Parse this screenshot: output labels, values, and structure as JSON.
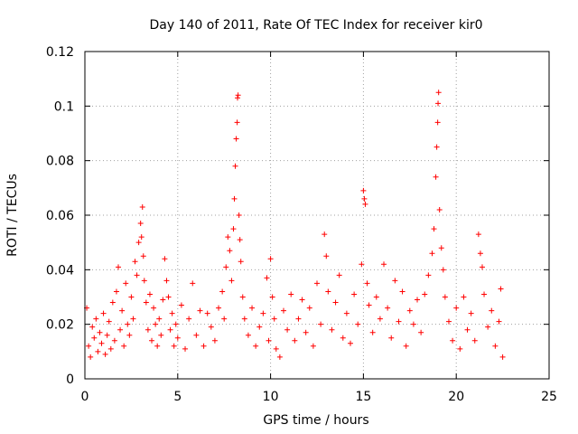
{
  "chart_data": {
    "type": "scatter",
    "title": "Day 140 of 2011, Rate Of TEC Index for receiver kir0",
    "xlabel": "GPS time / hours",
    "ylabel": "ROTI / TECUs",
    "xlim": [
      0,
      25
    ],
    "ylim": [
      0,
      0.12
    ],
    "xticks": [
      0,
      5,
      10,
      15,
      20,
      25
    ],
    "xtick_labels": [
      "0",
      "5",
      "10",
      "15",
      "20",
      "25"
    ],
    "yticks": [
      0,
      0.02,
      0.04,
      0.06,
      0.08,
      0.1,
      0.12
    ],
    "ytick_labels": [
      "0",
      "0.02",
      "0.04",
      "0.06",
      "0.08",
      "0.1",
      "0.12"
    ],
    "grid": true,
    "marker": "+",
    "series_color": "#ff0000",
    "series": [
      {
        "name": "ROTI",
        "points": [
          [
            0.1,
            0.026
          ],
          [
            0.2,
            0.012
          ],
          [
            0.3,
            0.008
          ],
          [
            0.4,
            0.019
          ],
          [
            0.5,
            0.015
          ],
          [
            0.6,
            0.022
          ],
          [
            0.7,
            0.01
          ],
          [
            0.8,
            0.017
          ],
          [
            0.9,
            0.013
          ],
          [
            1.0,
            0.024
          ],
          [
            1.1,
            0.009
          ],
          [
            1.2,
            0.016
          ],
          [
            1.3,
            0.021
          ],
          [
            1.4,
            0.011
          ],
          [
            1.5,
            0.028
          ],
          [
            1.6,
            0.014
          ],
          [
            1.7,
            0.032
          ],
          [
            1.8,
            0.041
          ],
          [
            1.9,
            0.018
          ],
          [
            2.0,
            0.025
          ],
          [
            2.1,
            0.012
          ],
          [
            2.2,
            0.035
          ],
          [
            2.3,
            0.02
          ],
          [
            2.4,
            0.016
          ],
          [
            2.5,
            0.03
          ],
          [
            2.6,
            0.022
          ],
          [
            2.7,
            0.043
          ],
          [
            2.8,
            0.038
          ],
          [
            2.9,
            0.05
          ],
          [
            3.0,
            0.057
          ],
          [
            3.05,
            0.052
          ],
          [
            3.1,
            0.063
          ],
          [
            3.15,
            0.045
          ],
          [
            3.2,
            0.036
          ],
          [
            3.3,
            0.028
          ],
          [
            3.4,
            0.018
          ],
          [
            3.5,
            0.031
          ],
          [
            3.6,
            0.014
          ],
          [
            3.7,
            0.026
          ],
          [
            3.8,
            0.02
          ],
          [
            3.9,
            0.012
          ],
          [
            4.0,
            0.022
          ],
          [
            4.1,
            0.016
          ],
          [
            4.2,
            0.029
          ],
          [
            4.3,
            0.044
          ],
          [
            4.4,
            0.036
          ],
          [
            4.5,
            0.03
          ],
          [
            4.6,
            0.018
          ],
          [
            4.7,
            0.024
          ],
          [
            4.8,
            0.012
          ],
          [
            4.9,
            0.02
          ],
          [
            5.0,
            0.015
          ],
          [
            5.2,
            0.027
          ],
          [
            5.4,
            0.011
          ],
          [
            5.6,
            0.022
          ],
          [
            5.8,
            0.035
          ],
          [
            6.0,
            0.016
          ],
          [
            6.2,
            0.025
          ],
          [
            6.4,
            0.012
          ],
          [
            6.6,
            0.024
          ],
          [
            6.8,
            0.019
          ],
          [
            7.0,
            0.014
          ],
          [
            7.2,
            0.026
          ],
          [
            7.4,
            0.032
          ],
          [
            7.5,
            0.022
          ],
          [
            7.6,
            0.041
          ],
          [
            7.7,
            0.052
          ],
          [
            7.8,
            0.047
          ],
          [
            7.9,
            0.036
          ],
          [
            8.0,
            0.055
          ],
          [
            8.05,
            0.066
          ],
          [
            8.1,
            0.078
          ],
          [
            8.15,
            0.088
          ],
          [
            8.2,
            0.094
          ],
          [
            8.22,
            0.103
          ],
          [
            8.25,
            0.104
          ],
          [
            8.3,
            0.06
          ],
          [
            8.35,
            0.051
          ],
          [
            8.4,
            0.043
          ],
          [
            8.5,
            0.03
          ],
          [
            8.6,
            0.022
          ],
          [
            8.8,
            0.016
          ],
          [
            9.0,
            0.026
          ],
          [
            9.2,
            0.012
          ],
          [
            9.4,
            0.019
          ],
          [
            9.6,
            0.024
          ],
          [
            9.8,
            0.037
          ],
          [
            9.9,
            0.014
          ],
          [
            10.0,
            0.044
          ],
          [
            10.1,
            0.03
          ],
          [
            10.2,
            0.022
          ],
          [
            10.3,
            0.011
          ],
          [
            10.5,
            0.008
          ],
          [
            10.7,
            0.025
          ],
          [
            10.9,
            0.018
          ],
          [
            11.1,
            0.031
          ],
          [
            11.3,
            0.014
          ],
          [
            11.5,
            0.022
          ],
          [
            11.7,
            0.029
          ],
          [
            11.9,
            0.017
          ],
          [
            12.1,
            0.026
          ],
          [
            12.3,
            0.012
          ],
          [
            12.5,
            0.035
          ],
          [
            12.7,
            0.02
          ],
          [
            12.9,
            0.053
          ],
          [
            13.0,
            0.045
          ],
          [
            13.1,
            0.032
          ],
          [
            13.3,
            0.018
          ],
          [
            13.5,
            0.028
          ],
          [
            13.7,
            0.038
          ],
          [
            13.9,
            0.015
          ],
          [
            14.1,
            0.024
          ],
          [
            14.3,
            0.013
          ],
          [
            14.5,
            0.031
          ],
          [
            14.7,
            0.02
          ],
          [
            14.9,
            0.042
          ],
          [
            15.0,
            0.069
          ],
          [
            15.05,
            0.066
          ],
          [
            15.1,
            0.064
          ],
          [
            15.2,
            0.035
          ],
          [
            15.3,
            0.027
          ],
          [
            15.5,
            0.017
          ],
          [
            15.7,
            0.03
          ],
          [
            15.9,
            0.022
          ],
          [
            16.1,
            0.042
          ],
          [
            16.3,
            0.026
          ],
          [
            16.5,
            0.015
          ],
          [
            16.7,
            0.036
          ],
          [
            16.9,
            0.021
          ],
          [
            17.1,
            0.032
          ],
          [
            17.3,
            0.012
          ],
          [
            17.5,
            0.025
          ],
          [
            17.7,
            0.02
          ],
          [
            17.9,
            0.029
          ],
          [
            18.1,
            0.017
          ],
          [
            18.3,
            0.031
          ],
          [
            18.5,
            0.038
          ],
          [
            18.7,
            0.046
          ],
          [
            18.8,
            0.055
          ],
          [
            18.9,
            0.074
          ],
          [
            18.95,
            0.085
          ],
          [
            19.0,
            0.094
          ],
          [
            19.02,
            0.101
          ],
          [
            19.05,
            0.105
          ],
          [
            19.1,
            0.062
          ],
          [
            19.2,
            0.048
          ],
          [
            19.3,
            0.04
          ],
          [
            19.4,
            0.03
          ],
          [
            19.6,
            0.021
          ],
          [
            19.8,
            0.014
          ],
          [
            20.0,
            0.026
          ],
          [
            20.2,
            0.011
          ],
          [
            20.4,
            0.03
          ],
          [
            20.6,
            0.018
          ],
          [
            20.8,
            0.024
          ],
          [
            21.0,
            0.014
          ],
          [
            21.2,
            0.053
          ],
          [
            21.3,
            0.046
          ],
          [
            21.4,
            0.041
          ],
          [
            21.5,
            0.031
          ],
          [
            21.7,
            0.019
          ],
          [
            21.9,
            0.025
          ],
          [
            22.1,
            0.012
          ],
          [
            22.3,
            0.021
          ],
          [
            22.4,
            0.033
          ],
          [
            22.5,
            0.008
          ]
        ]
      }
    ]
  }
}
